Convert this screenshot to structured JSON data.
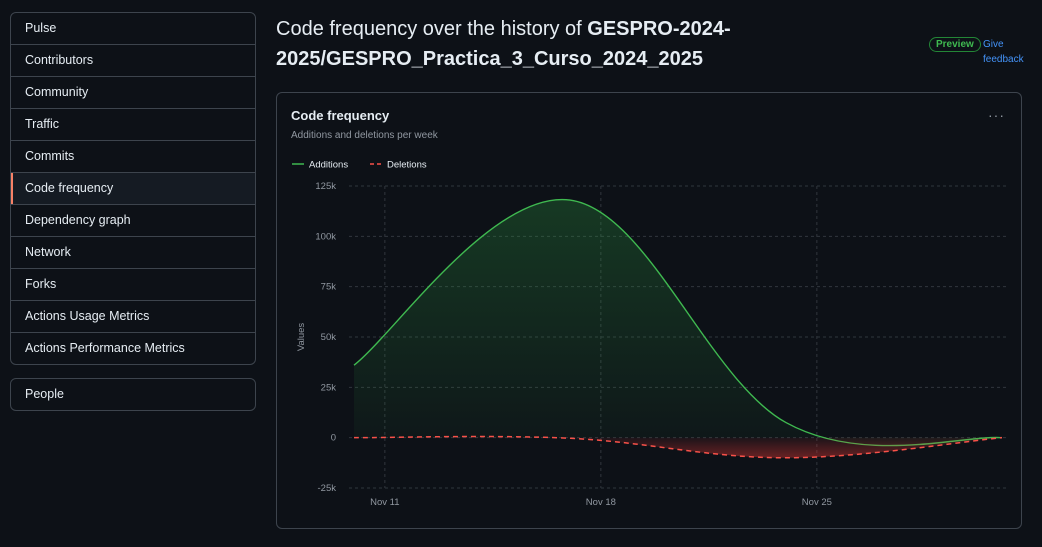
{
  "sidebar": {
    "items": [
      {
        "label": "Pulse"
      },
      {
        "label": "Contributors"
      },
      {
        "label": "Community"
      },
      {
        "label": "Traffic"
      },
      {
        "label": "Commits"
      },
      {
        "label": "Code frequency",
        "active": true
      },
      {
        "label": "Dependency graph"
      },
      {
        "label": "Network"
      },
      {
        "label": "Forks"
      },
      {
        "label": "Actions Usage Metrics"
      },
      {
        "label": "Actions Performance Metrics"
      }
    ],
    "people": "People"
  },
  "header": {
    "prefix": "Code frequency over the history of ",
    "repo_line1": "GESPRO-2024-",
    "repo_line2": "2025/GESPRO_Practica_3_Curso_2024_2025",
    "preview": "Preview",
    "feedback_line1": "Give",
    "feedback_line2": "feedback"
  },
  "card": {
    "title": "Code frequency",
    "subtitle": "Additions and deletions per week",
    "menu_icon": "kebab-horizontal-icon"
  },
  "chart_data": {
    "type": "area",
    "title": "Code frequency",
    "subtitle": "Additions and deletions per week",
    "xlabel": "",
    "ylabel": "Values",
    "x_ticks": [
      "Nov 11",
      "Nov 18",
      "Nov 25"
    ],
    "x": [
      "Nov 10",
      "Nov 17",
      "Nov 24",
      "Dec 1"
    ],
    "ylim": [
      -25000,
      125000
    ],
    "y_ticks": [
      "125k",
      "100k",
      "75k",
      "50k",
      "25k",
      "0",
      "-25k"
    ],
    "grid": true,
    "legend_placement": "top-left",
    "series": [
      {
        "name": "Additions",
        "color": "#3fb950",
        "values": [
          36000,
          118000,
          7500,
          0
        ]
      },
      {
        "name": "Deletions",
        "color": "#f85149",
        "values": [
          0,
          -300,
          -10000,
          0
        ]
      }
    ]
  }
}
